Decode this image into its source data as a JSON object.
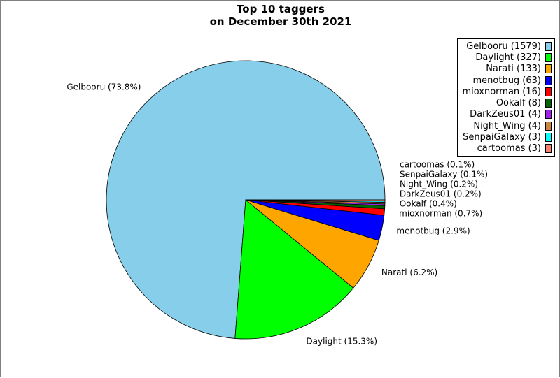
{
  "chart_data": {
    "type": "pie",
    "title": "Top 10 taggers",
    "subtitle": "on December 30th 2021",
    "legend_position": "top-right",
    "slices": [
      {
        "name": "Gelbooru",
        "value": 1579,
        "legend": "Gelbooru (1579)",
        "label": "Gelbooru (73.8%)",
        "color": "#87ceeb"
      },
      {
        "name": "Daylight",
        "value": 327,
        "legend": "Daylight (327)",
        "label": "Daylight (15.3%)",
        "color": "#00ff00"
      },
      {
        "name": "Narati",
        "value": 133,
        "legend": "Narati (133)",
        "label": "Narati (6.2%)",
        "color": "#ffa500"
      },
      {
        "name": "menotbug",
        "value": 63,
        "legend": "menotbug (63)",
        "label": "menotbug (2.9%)",
        "color": "#0000ff"
      },
      {
        "name": "mioxnorman",
        "value": 16,
        "legend": "mioxnorman (16)",
        "label": "mioxnorman (0.7%)",
        "color": "#ff0000"
      },
      {
        "name": "Ookalf",
        "value": 8,
        "legend": "Ookalf (8)",
        "label": "Ookalf (0.4%)",
        "color": "#006400"
      },
      {
        "name": "DarkZeus01",
        "value": 4,
        "legend": "DarkZeus01 (4)",
        "label": "DarkZeus01 (0.2%)",
        "color": "#a020f0"
      },
      {
        "name": "Night_Wing",
        "value": 4,
        "legend": "Night_Wing (4)",
        "label": "Night_Wing (0.2%)",
        "color": "#cd853f"
      },
      {
        "name": "SenpaiGalaxy",
        "value": 3,
        "legend": "SenpaiGalaxy (3)",
        "label": "SenpaiGalaxy (0.1%)",
        "color": "#00ffff"
      },
      {
        "name": "cartoomas",
        "value": 3,
        "legend": "cartoomas (3)",
        "label": "cartoomas (0.1%)",
        "color": "#fa8072"
      }
    ]
  }
}
